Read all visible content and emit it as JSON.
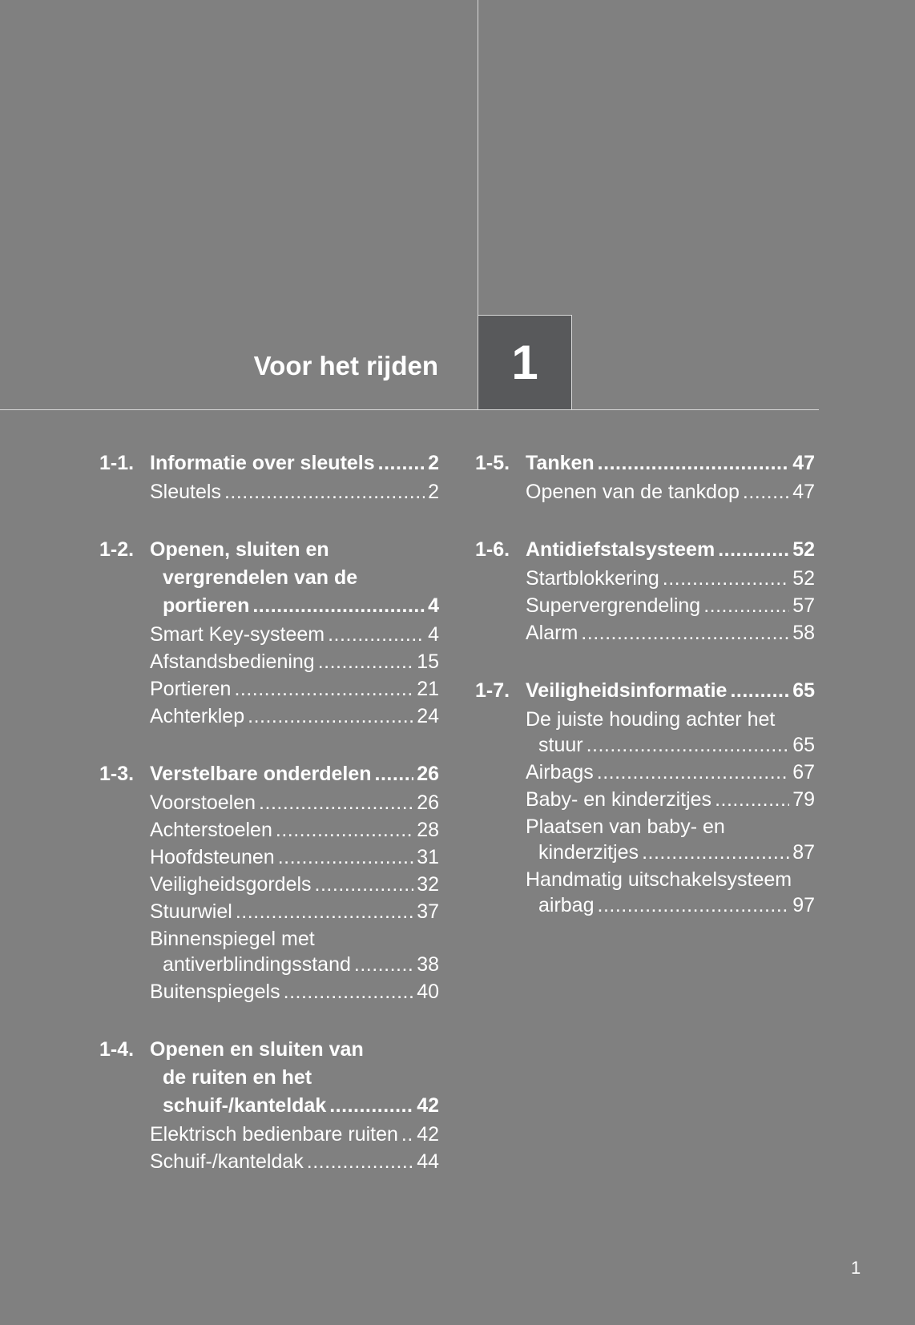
{
  "chapter": {
    "title": "Voor het rijden",
    "number": "1"
  },
  "columns": [
    {
      "sections": [
        {
          "number": "1-1.",
          "title_lines": [
            "Informatie over sleutels"
          ],
          "page": "2",
          "items": [
            {
              "lines": [
                "Sleutels"
              ],
              "page": "2"
            }
          ]
        },
        {
          "number": "1-2.",
          "title_lines": [
            "Openen, sluiten en",
            "vergrendelen van de",
            "portieren"
          ],
          "page": "4",
          "items": [
            {
              "lines": [
                "Smart Key-systeem"
              ],
              "page": "4"
            },
            {
              "lines": [
                "Afstandsbediening"
              ],
              "page": "15"
            },
            {
              "lines": [
                "Portieren"
              ],
              "page": "21"
            },
            {
              "lines": [
                "Achterklep"
              ],
              "page": "24"
            }
          ]
        },
        {
          "number": "1-3.",
          "title_lines": [
            "Verstelbare onderdelen"
          ],
          "page": "26",
          "items": [
            {
              "lines": [
                "Voorstoelen"
              ],
              "page": "26"
            },
            {
              "lines": [
                "Achterstoelen"
              ],
              "page": "28"
            },
            {
              "lines": [
                "Hoofdsteunen"
              ],
              "page": "31"
            },
            {
              "lines": [
                "Veiligheidsgordels"
              ],
              "page": "32"
            },
            {
              "lines": [
                "Stuurwiel"
              ],
              "page": "37"
            },
            {
              "lines": [
                "Binnenspiegel met",
                "antiverblindingsstand"
              ],
              "page": "38"
            },
            {
              "lines": [
                "Buitenspiegels"
              ],
              "page": "40"
            }
          ]
        },
        {
          "number": "1-4.",
          "title_lines": [
            "Openen en sluiten van",
            "de ruiten en het",
            "schuif-/kanteldak"
          ],
          "page": "42",
          "items": [
            {
              "lines": [
                "Elektrisch bedienbare ruiten"
              ],
              "page": "42"
            },
            {
              "lines": [
                "Schuif-/kanteldak"
              ],
              "page": "44"
            }
          ]
        }
      ]
    },
    {
      "sections": [
        {
          "number": "1-5.",
          "title_lines": [
            "Tanken"
          ],
          "page": "47",
          "items": [
            {
              "lines": [
                "Openen van de tankdop"
              ],
              "page": "47"
            }
          ]
        },
        {
          "number": "1-6.",
          "title_lines": [
            "Antidiefstalsysteem"
          ],
          "page": "52",
          "items": [
            {
              "lines": [
                "Startblokkering"
              ],
              "page": "52"
            },
            {
              "lines": [
                "Supervergrendeling"
              ],
              "page": "57"
            },
            {
              "lines": [
                "Alarm"
              ],
              "page": "58"
            }
          ]
        },
        {
          "number": "1-7.",
          "title_lines": [
            "Veiligheidsinformatie"
          ],
          "page": "65",
          "items": [
            {
              "lines": [
                "De juiste houding achter het",
                "stuur"
              ],
              "page": "65"
            },
            {
              "lines": [
                "Airbags"
              ],
              "page": "67"
            },
            {
              "lines": [
                "Baby- en kinderzitjes"
              ],
              "page": "79"
            },
            {
              "lines": [
                "Plaatsen van baby- en",
                "kinderzitjes"
              ],
              "page": "87"
            },
            {
              "lines": [
                "Handmatig uitschakelsysteem",
                "airbag"
              ],
              "page": "97"
            }
          ]
        }
      ]
    }
  ],
  "page_number": "1"
}
